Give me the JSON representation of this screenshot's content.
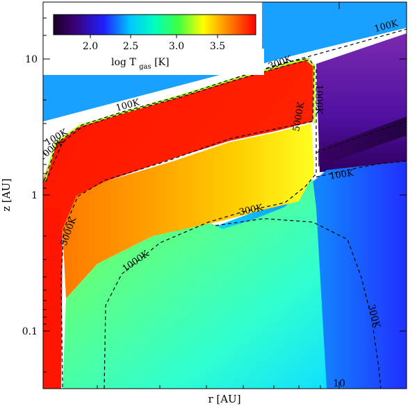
{
  "chart_data": {
    "type": "heatmap",
    "title": "",
    "xlabel": "r [AU]",
    "ylabel": "z [AU]",
    "xscale": "log",
    "yscale": "log",
    "xlim": [
      2.7,
      16.5
    ],
    "ylim": [
      0.05,
      25
    ],
    "x_tick_labels": [
      "10"
    ],
    "y_tick_labels": [
      "0.1",
      "1",
      "10"
    ],
    "colorbar": {
      "label_main": "log T",
      "label_sub": "gas",
      "label_unit": "[K]",
      "range": [
        1.6,
        3.9
      ],
      "ticks": [
        "2.0",
        "2.5",
        "3.0",
        "3.5"
      ],
      "placement": "top-left",
      "colormap": [
        "#1a0026",
        "#3a0070",
        "#2020ff",
        "#00c8ff",
        "#00ffc0",
        "#40ff40",
        "#ffff00",
        "#ff8000",
        "#ff0000"
      ]
    },
    "regions": [
      {
        "name": "background",
        "color": "#ffffff"
      },
      {
        "name": "atmosphere-100K",
        "color": "#1aa0ff"
      },
      {
        "name": "hot-layer",
        "color": "#ff1a00"
      },
      {
        "name": "warm-interior",
        "color": "#ffc000"
      },
      {
        "name": "midplane",
        "color": "#40ffb0"
      },
      {
        "name": "outer-cold-atmosphere",
        "color": "#5a0aa0"
      },
      {
        "name": "outer-cold-midplane",
        "color": "#3060ff"
      }
    ],
    "contours": [
      {
        "level": "100K",
        "labels": [
          "100K",
          "100K",
          "100K",
          "100K"
        ]
      },
      {
        "level": "300K",
        "labels": [
          "300K",
          "300K",
          "300K"
        ]
      },
      {
        "level": "1000K",
        "labels": [
          "1000K",
          "1000K",
          "1000K"
        ]
      },
      {
        "level": "5000K",
        "labels": [
          "5000K",
          "5000K"
        ]
      }
    ]
  }
}
